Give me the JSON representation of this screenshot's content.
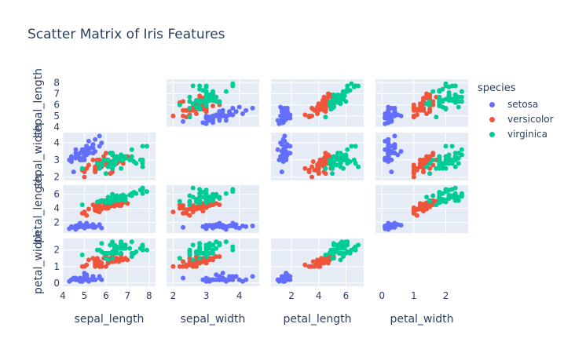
{
  "chart_data": {
    "type": "scatter",
    "title": "Scatter Matrix of Iris Features",
    "dimensions": [
      "sepal_length",
      "sepal_width",
      "petal_length",
      "petal_width"
    ],
    "axis_ranges": {
      "sepal_length": [
        4.0,
        8.3
      ],
      "sepal_width": [
        1.8,
        4.6
      ],
      "petal_length": [
        0.5,
        7.3
      ],
      "petal_width": [
        -0.2,
        2.7
      ]
    },
    "ticks": {
      "sepal_length": [
        4,
        5,
        6,
        7,
        8
      ],
      "sepal_width": [
        2,
        3,
        4
      ],
      "petal_length": [
        2,
        4,
        6
      ],
      "petal_width": [
        0,
        1,
        2
      ]
    },
    "diagonal_visible": false,
    "grid": true,
    "legend": {
      "title": "species",
      "placement": "right"
    },
    "series": [
      {
        "name": "setosa",
        "color": "#636efa",
        "points": [
          [
            5.1,
            3.5,
            1.4,
            0.2
          ],
          [
            4.9,
            3.0,
            1.4,
            0.2
          ],
          [
            4.7,
            3.2,
            1.3,
            0.2
          ],
          [
            4.6,
            3.1,
            1.5,
            0.2
          ],
          [
            5.0,
            3.6,
            1.4,
            0.2
          ],
          [
            5.4,
            3.9,
            1.7,
            0.4
          ],
          [
            4.6,
            3.4,
            1.4,
            0.3
          ],
          [
            5.0,
            3.4,
            1.5,
            0.2
          ],
          [
            4.4,
            2.9,
            1.4,
            0.2
          ],
          [
            4.9,
            3.1,
            1.5,
            0.1
          ],
          [
            5.4,
            3.7,
            1.5,
            0.2
          ],
          [
            4.8,
            3.4,
            1.6,
            0.2
          ],
          [
            4.8,
            3.0,
            1.4,
            0.1
          ],
          [
            4.3,
            3.0,
            1.1,
            0.1
          ],
          [
            5.8,
            4.0,
            1.2,
            0.2
          ],
          [
            5.7,
            4.4,
            1.5,
            0.4
          ],
          [
            5.4,
            3.9,
            1.3,
            0.4
          ],
          [
            5.1,
            3.5,
            1.4,
            0.3
          ],
          [
            5.7,
            3.8,
            1.7,
            0.3
          ],
          [
            5.1,
            3.8,
            1.5,
            0.3
          ],
          [
            5.4,
            3.4,
            1.7,
            0.2
          ],
          [
            5.1,
            3.7,
            1.5,
            0.4
          ],
          [
            4.6,
            3.6,
            1.0,
            0.2
          ],
          [
            5.1,
            3.3,
            1.7,
            0.5
          ],
          [
            4.8,
            3.4,
            1.9,
            0.2
          ],
          [
            5.0,
            3.0,
            1.6,
            0.2
          ],
          [
            5.0,
            3.4,
            1.6,
            0.4
          ],
          [
            5.2,
            3.5,
            1.5,
            0.2
          ],
          [
            5.2,
            3.4,
            1.4,
            0.2
          ],
          [
            4.7,
            3.2,
            1.6,
            0.2
          ],
          [
            4.8,
            3.1,
            1.6,
            0.2
          ],
          [
            5.4,
            3.4,
            1.5,
            0.4
          ],
          [
            5.2,
            4.1,
            1.5,
            0.1
          ],
          [
            5.5,
            4.2,
            1.4,
            0.2
          ],
          [
            4.9,
            3.1,
            1.5,
            0.2
          ],
          [
            5.0,
            3.2,
            1.2,
            0.2
          ],
          [
            5.5,
            3.5,
            1.3,
            0.2
          ],
          [
            4.9,
            3.6,
            1.4,
            0.1
          ],
          [
            4.4,
            3.0,
            1.3,
            0.2
          ],
          [
            5.1,
            3.4,
            1.5,
            0.2
          ],
          [
            5.0,
            3.5,
            1.3,
            0.3
          ],
          [
            4.5,
            2.3,
            1.3,
            0.3
          ],
          [
            4.4,
            3.2,
            1.3,
            0.2
          ],
          [
            5.0,
            3.5,
            1.6,
            0.6
          ],
          [
            5.1,
            3.8,
            1.9,
            0.4
          ],
          [
            4.8,
            3.0,
            1.4,
            0.3
          ],
          [
            5.1,
            3.8,
            1.6,
            0.2
          ],
          [
            4.6,
            3.2,
            1.4,
            0.2
          ],
          [
            5.3,
            3.7,
            1.5,
            0.2
          ],
          [
            5.0,
            3.3,
            1.4,
            0.2
          ]
        ]
      },
      {
        "name": "versicolor",
        "color": "#ef553b",
        "points": [
          [
            7.0,
            3.2,
            4.7,
            1.4
          ],
          [
            6.4,
            3.2,
            4.5,
            1.5
          ],
          [
            6.9,
            3.1,
            4.9,
            1.5
          ],
          [
            5.5,
            2.3,
            4.0,
            1.3
          ],
          [
            6.5,
            2.8,
            4.6,
            1.5
          ],
          [
            5.7,
            2.8,
            4.5,
            1.3
          ],
          [
            6.3,
            3.3,
            4.7,
            1.6
          ],
          [
            4.9,
            2.4,
            3.3,
            1.0
          ],
          [
            6.6,
            2.9,
            4.6,
            1.3
          ],
          [
            5.2,
            2.7,
            3.9,
            1.4
          ],
          [
            5.0,
            2.0,
            3.5,
            1.0
          ],
          [
            5.9,
            3.0,
            4.2,
            1.5
          ],
          [
            6.0,
            2.2,
            4.0,
            1.0
          ],
          [
            6.1,
            2.9,
            4.7,
            1.4
          ],
          [
            5.6,
            2.9,
            3.6,
            1.3
          ],
          [
            6.7,
            3.1,
            4.4,
            1.4
          ],
          [
            5.6,
            3.0,
            4.5,
            1.5
          ],
          [
            5.8,
            2.7,
            4.1,
            1.0
          ],
          [
            6.2,
            2.2,
            4.5,
            1.5
          ],
          [
            5.6,
            2.5,
            3.9,
            1.1
          ],
          [
            5.9,
            3.2,
            4.8,
            1.8
          ],
          [
            6.1,
            2.8,
            4.0,
            1.3
          ],
          [
            6.3,
            2.5,
            4.9,
            1.5
          ],
          [
            6.1,
            2.8,
            4.7,
            1.2
          ],
          [
            6.4,
            2.9,
            4.3,
            1.3
          ],
          [
            6.6,
            3.0,
            4.4,
            1.4
          ],
          [
            6.8,
            2.8,
            4.8,
            1.4
          ],
          [
            6.7,
            3.0,
            5.0,
            1.7
          ],
          [
            6.0,
            2.9,
            4.5,
            1.5
          ],
          [
            5.7,
            2.6,
            3.5,
            1.0
          ],
          [
            5.5,
            2.4,
            3.8,
            1.1
          ],
          [
            5.5,
            2.4,
            3.7,
            1.0
          ],
          [
            5.8,
            2.7,
            3.9,
            1.2
          ],
          [
            6.0,
            2.7,
            5.1,
            1.6
          ],
          [
            5.4,
            3.0,
            4.5,
            1.5
          ],
          [
            6.0,
            3.4,
            4.5,
            1.6
          ],
          [
            6.7,
            3.1,
            4.7,
            1.5
          ],
          [
            6.3,
            2.3,
            4.4,
            1.3
          ],
          [
            5.6,
            3.0,
            4.1,
            1.3
          ],
          [
            5.5,
            2.5,
            4.0,
            1.3
          ],
          [
            5.5,
            2.6,
            4.4,
            1.2
          ],
          [
            6.1,
            3.0,
            4.6,
            1.4
          ],
          [
            5.8,
            2.6,
            4.0,
            1.2
          ],
          [
            5.0,
            2.3,
            3.3,
            1.0
          ],
          [
            5.6,
            2.7,
            4.2,
            1.3
          ],
          [
            5.7,
            3.0,
            4.2,
            1.2
          ],
          [
            5.7,
            2.9,
            4.2,
            1.3
          ],
          [
            6.2,
            2.9,
            4.3,
            1.3
          ],
          [
            5.1,
            2.5,
            3.0,
            1.1
          ],
          [
            5.7,
            2.8,
            4.1,
            1.3
          ]
        ]
      },
      {
        "name": "virginica",
        "color": "#00cc96",
        "points": [
          [
            6.3,
            3.3,
            6.0,
            2.5
          ],
          [
            5.8,
            2.7,
            5.1,
            1.9
          ],
          [
            7.1,
            3.0,
            5.9,
            2.1
          ],
          [
            6.3,
            2.9,
            5.6,
            1.8
          ],
          [
            6.5,
            3.0,
            5.8,
            2.2
          ],
          [
            7.6,
            3.0,
            6.6,
            2.1
          ],
          [
            4.9,
            2.5,
            4.5,
            1.7
          ],
          [
            7.3,
            2.9,
            6.3,
            1.8
          ],
          [
            6.7,
            2.5,
            5.8,
            1.8
          ],
          [
            7.2,
            3.6,
            6.1,
            2.5
          ],
          [
            6.5,
            3.2,
            5.1,
            2.0
          ],
          [
            6.4,
            2.7,
            5.3,
            1.9
          ],
          [
            6.8,
            3.0,
            5.5,
            2.1
          ],
          [
            5.7,
            2.5,
            5.0,
            2.0
          ],
          [
            5.8,
            2.8,
            5.1,
            2.4
          ],
          [
            6.4,
            3.2,
            5.3,
            2.3
          ],
          [
            6.5,
            3.0,
            5.5,
            1.8
          ],
          [
            7.7,
            3.8,
            6.7,
            2.2
          ],
          [
            7.7,
            2.6,
            6.9,
            2.3
          ],
          [
            6.0,
            2.2,
            5.0,
            1.5
          ],
          [
            6.9,
            3.2,
            5.7,
            2.3
          ],
          [
            5.6,
            2.8,
            4.9,
            2.0
          ],
          [
            7.7,
            2.8,
            6.7,
            2.0
          ],
          [
            6.3,
            2.7,
            4.9,
            1.8
          ],
          [
            6.7,
            3.3,
            5.7,
            2.1
          ],
          [
            7.2,
            3.2,
            6.0,
            1.8
          ],
          [
            6.2,
            2.8,
            4.8,
            1.8
          ],
          [
            6.1,
            3.0,
            4.9,
            1.8
          ],
          [
            6.4,
            2.8,
            5.6,
            2.1
          ],
          [
            7.2,
            3.0,
            5.8,
            1.6
          ],
          [
            7.4,
            2.8,
            6.1,
            1.9
          ],
          [
            7.9,
            3.8,
            6.4,
            2.0
          ],
          [
            6.4,
            2.8,
            5.6,
            2.2
          ],
          [
            6.3,
            2.8,
            5.1,
            1.5
          ],
          [
            6.1,
            2.6,
            5.6,
            1.4
          ],
          [
            7.7,
            3.0,
            6.1,
            2.3
          ],
          [
            6.3,
            3.4,
            5.6,
            2.4
          ],
          [
            6.4,
            3.1,
            5.5,
            1.8
          ],
          [
            6.0,
            3.0,
            4.8,
            1.8
          ],
          [
            6.9,
            3.1,
            5.4,
            2.1
          ],
          [
            6.7,
            3.1,
            5.6,
            2.4
          ],
          [
            6.9,
            3.1,
            5.1,
            2.3
          ],
          [
            5.8,
            2.7,
            5.1,
            1.9
          ],
          [
            6.8,
            3.2,
            5.9,
            2.3
          ],
          [
            6.7,
            3.3,
            5.7,
            2.5
          ],
          [
            6.7,
            3.0,
            5.2,
            2.3
          ],
          [
            6.3,
            2.5,
            5.0,
            1.9
          ],
          [
            6.5,
            3.0,
            5.2,
            2.0
          ],
          [
            6.2,
            3.4,
            5.4,
            2.3
          ],
          [
            5.9,
            3.0,
            5.1,
            1.8
          ]
        ]
      }
    ]
  }
}
